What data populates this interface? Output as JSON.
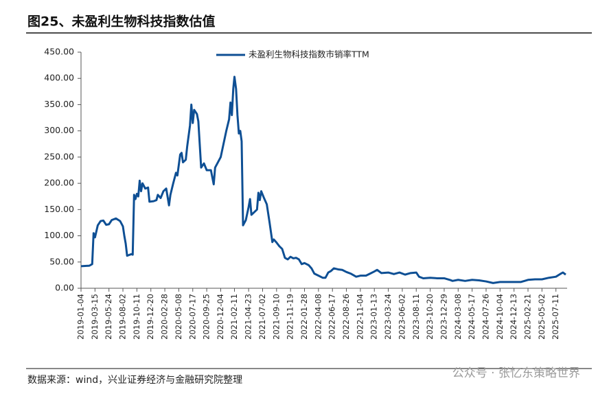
{
  "chart_data": {
    "type": "line",
    "title": "图25、未盈利生物科技指数估值",
    "source": "数据来源：wind，兴业证券经济与金融研究院整理",
    "brand": "公众号 · 张忆东策略世界",
    "legend": "top-center",
    "xlim": [
      "2019-01-04",
      "2025-09-05"
    ],
    "xticks": [
      "2019-01-04",
      "2019-03-15",
      "2019-05-24",
      "2019-08-02",
      "2019-10-11",
      "2019-12-20",
      "2020-02-28",
      "2020-05-08",
      "2020-07-17",
      "2020-09-25",
      "2020-12-04",
      "2021-02-11",
      "2021-04-23",
      "2021-07-02",
      "2021-09-10",
      "2021-11-19",
      "2022-01-28",
      "2022-04-08",
      "2022-06-17",
      "2022-08-26",
      "2022-11-04",
      "2023-01-13",
      "2023-03-24",
      "2023-06-02",
      "2023-08-11",
      "2023-10-20",
      "2023-12-29",
      "2024-03-08",
      "2024-05-17",
      "2024-07-26",
      "2024-10-04",
      "2024-12-13",
      "2025-02-21",
      "2025-05-02",
      "2025-07-11"
    ],
    "ylim": [
      0,
      450
    ],
    "yticks": [
      {
        "value": 0,
        "label": "0.00"
      },
      {
        "value": 50,
        "label": "50.00"
      },
      {
        "value": 100,
        "label": "100.00"
      },
      {
        "value": 150,
        "label": "150.00"
      },
      {
        "value": 200,
        "label": "200.00"
      },
      {
        "value": 250,
        "label": "250.00"
      },
      {
        "value": 300,
        "label": "300.00"
      },
      {
        "value": 350,
        "label": "350.00"
      },
      {
        "value": 400,
        "label": "400.00"
      },
      {
        "value": 450,
        "label": "450.00"
      }
    ],
    "x": [
      "2019-01-04",
      "2019-02-15",
      "2019-03-01",
      "2019-03-08",
      "2019-03-15",
      "2019-03-29",
      "2019-04-12",
      "2019-04-26",
      "2019-05-10",
      "2019-05-24",
      "2019-06-07",
      "2019-06-28",
      "2019-07-19",
      "2019-08-02",
      "2019-08-09",
      "2019-08-16",
      "2019-08-23",
      "2019-09-13",
      "2019-09-20",
      "2019-09-27",
      "2019-10-04",
      "2019-10-11",
      "2019-10-18",
      "2019-10-25",
      "2019-11-01",
      "2019-11-08",
      "2019-11-22",
      "2019-12-06",
      "2019-12-13",
      "2020-01-03",
      "2020-01-17",
      "2020-01-24",
      "2020-02-07",
      "2020-02-21",
      "2020-03-06",
      "2020-03-20",
      "2020-03-27",
      "2020-04-10",
      "2020-04-24",
      "2020-05-01",
      "2020-05-15",
      "2020-05-22",
      "2020-05-29",
      "2020-06-12",
      "2020-06-19",
      "2020-07-03",
      "2020-07-10",
      "2020-07-17",
      "2020-07-24",
      "2020-08-07",
      "2020-08-14",
      "2020-08-28",
      "2020-09-11",
      "2020-09-25",
      "2020-10-16",
      "2020-10-30",
      "2020-11-06",
      "2020-11-20",
      "2020-12-04",
      "2020-12-18",
      "2021-01-01",
      "2021-01-15",
      "2021-01-22",
      "2021-01-29",
      "2021-02-05",
      "2021-02-11",
      "2021-02-19",
      "2021-02-26",
      "2021-03-05",
      "2021-03-12",
      "2021-03-19",
      "2021-03-26",
      "2021-04-09",
      "2021-04-23",
      "2021-04-30",
      "2021-05-07",
      "2021-05-21",
      "2021-06-04",
      "2021-06-11",
      "2021-06-18",
      "2021-06-25",
      "2021-07-09",
      "2021-07-23",
      "2021-08-06",
      "2021-08-20",
      "2021-08-27",
      "2021-09-10",
      "2021-09-24",
      "2021-10-08",
      "2021-10-22",
      "2021-11-05",
      "2021-11-19",
      "2021-12-03",
      "2021-12-17",
      "2021-12-31",
      "2022-01-14",
      "2022-01-28",
      "2022-02-18",
      "2022-03-04",
      "2022-03-18",
      "2022-04-08",
      "2022-04-29",
      "2022-05-13",
      "2022-05-27",
      "2022-06-10",
      "2022-06-24",
      "2022-07-15",
      "2022-08-05",
      "2022-08-26",
      "2022-09-16",
      "2022-10-14",
      "2022-11-04",
      "2022-12-02",
      "2022-12-23",
      "2023-01-13",
      "2023-01-27",
      "2023-02-17",
      "2023-03-24",
      "2023-04-21",
      "2023-05-19",
      "2023-06-16",
      "2023-07-14",
      "2023-08-11",
      "2023-08-25",
      "2023-09-15",
      "2023-10-20",
      "2023-11-24",
      "2023-12-29",
      "2024-01-26",
      "2024-02-09",
      "2024-03-08",
      "2024-04-12",
      "2024-05-17",
      "2024-06-21",
      "2024-07-26",
      "2024-08-30",
      "2024-10-04",
      "2024-11-08",
      "2024-12-13",
      "2025-01-17",
      "2025-02-21",
      "2025-03-28",
      "2025-05-02",
      "2025-06-06",
      "2025-07-11",
      "2025-08-01",
      "2025-08-15",
      "2025-08-29"
    ],
    "series": [
      {
        "name": "未盈利生物科技指数市销率TTM",
        "color": "#0e4f94",
        "values": [
          42,
          43,
          46,
          105,
          97,
          120,
          128,
          129,
          121,
          122,
          130,
          133,
          128,
          118,
          100,
          85,
          62,
          65,
          64,
          178,
          170,
          180,
          175,
          205,
          185,
          200,
          190,
          192,
          165,
          166,
          168,
          178,
          172,
          185,
          190,
          158,
          178,
          200,
          220,
          215,
          255,
          258,
          240,
          245,
          270,
          310,
          350,
          315,
          340,
          332,
          318,
          230,
          238,
          225,
          225,
          198,
          230,
          240,
          250,
          275,
          300,
          322,
          354,
          330,
          380,
          403,
          380,
          330,
          295,
          300,
          280,
          120,
          130,
          155,
          170,
          140,
          145,
          150,
          182,
          168,
          185,
          172,
          160,
          125,
          88,
          93,
          87,
          80,
          75,
          58,
          55,
          60,
          57,
          58,
          55,
          46,
          48,
          44,
          38,
          28,
          24,
          20,
          20,
          30,
          33,
          38,
          36,
          35,
          31,
          28,
          22,
          24,
          24,
          28,
          32,
          35,
          29,
          30,
          27,
          30,
          26,
          29,
          30,
          22,
          19,
          20,
          19,
          19,
          16,
          14,
          16,
          14,
          16,
          15,
          13,
          10,
          12,
          12,
          12,
          12,
          16,
          17,
          17,
          20,
          22,
          27,
          30,
          26
        ]
      }
    ]
  }
}
